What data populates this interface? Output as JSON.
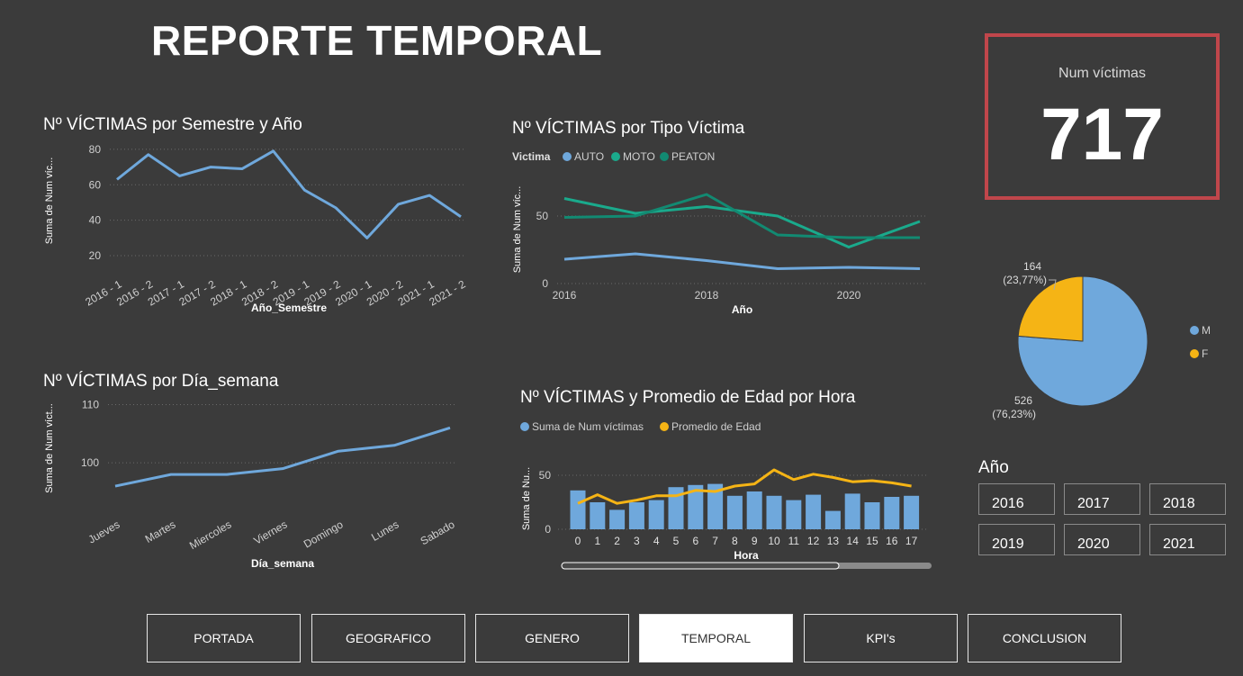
{
  "page": {
    "title": "REPORTE TEMPORAL"
  },
  "kpi": {
    "label": "Num víctimas",
    "value": "717"
  },
  "slicer": {
    "title": "Año",
    "options": [
      "2016",
      "2017",
      "2018",
      "2019",
      "2020",
      "2021"
    ]
  },
  "nav": {
    "items": [
      "PORTADA",
      "GEOGRAFICO",
      "GENERO",
      "TEMPORAL",
      "KPI's",
      "CONCLUSION"
    ],
    "active": "TEMPORAL"
  },
  "colors": {
    "blue": "#6fa8dc",
    "teal": "#1aaa8c",
    "dark_teal": "#128a72",
    "orange": "#f5b415",
    "kpi_border": "#c0464b"
  },
  "chart_data": [
    {
      "id": "semestre",
      "type": "line",
      "title": "Nº VÍCTIMAS por Semestre y Año",
      "xlabel": "Año_Semestre",
      "ylabel": "Suma de Num víc...",
      "categories": [
        "2016 - 1",
        "2016 - 2",
        "2017 - 1",
        "2017 - 2",
        "2018 - 1",
        "2018 - 2",
        "2019 - 1",
        "2019 - 2",
        "2020 - 1",
        "2020 - 2",
        "2021 - 1",
        "2021 - 2"
      ],
      "series": [
        {
          "values": [
            63,
            77,
            65,
            70,
            69,
            79,
            57,
            47,
            30,
            49,
            54,
            42
          ]
        }
      ],
      "yticks": [
        20,
        40,
        60,
        80
      ],
      "ylim": [
        18,
        84
      ]
    },
    {
      "id": "tipo",
      "type": "line",
      "title": "Nº VÍCTIMAS por Tipo Víctima",
      "xlabel": "Año",
      "ylabel": "Suma de Num víc...",
      "legend_title": "Victima",
      "x": [
        2016,
        2017,
        2018,
        2019,
        2020,
        2021
      ],
      "xticks": [
        "2016",
        "2018",
        "2020"
      ],
      "series": [
        {
          "name": "AUTO",
          "values": [
            18,
            22,
            17,
            11,
            12,
            11
          ]
        },
        {
          "name": "MOTO",
          "values": [
            63,
            52,
            57,
            50,
            27,
            46
          ]
        },
        {
          "name": "PEATON",
          "values": [
            49,
            50,
            66,
            36,
            34,
            34
          ]
        }
      ],
      "yticks": [
        0,
        50
      ],
      "ylim": [
        0,
        80
      ]
    },
    {
      "id": "dia",
      "type": "line",
      "title": "Nº VÍCTIMAS por Día_semana",
      "xlabel": "Día_semana",
      "ylabel": "Suma de Num víct...",
      "categories": [
        "Jueves",
        "Martes",
        "Miercoles",
        "Viernes",
        "Domingo",
        "Lunes",
        "Sabado"
      ],
      "series": [
        {
          "values": [
            96,
            98,
            98,
            99,
            102,
            103,
            106
          ]
        }
      ],
      "yticks": [
        100,
        110
      ],
      "ylim": [
        94,
        111
      ]
    },
    {
      "id": "hora",
      "type": "bar",
      "title": "Nº VÍCTIMAS y Promedio de Edad por Hora",
      "xlabel": "Hora",
      "ylabel": "Suma de Nu...",
      "categories": [
        "0",
        "1",
        "2",
        "3",
        "4",
        "5",
        "6",
        "7",
        "8",
        "9",
        "10",
        "11",
        "12",
        "13",
        "14",
        "15",
        "16",
        "17"
      ],
      "series": [
        {
          "name": "Suma de Num víctimas",
          "type": "bar",
          "values": [
            36,
            25,
            18,
            25,
            27,
            39,
            41,
            42,
            31,
            35,
            31,
            27,
            32,
            17,
            33,
            25,
            30,
            31
          ]
        },
        {
          "name": "Promedio de Edad",
          "type": "line",
          "values": [
            24,
            32,
            24,
            27,
            31,
            31,
            36,
            35,
            40,
            42,
            55,
            46,
            51,
            48,
            44,
            45,
            43,
            40
          ]
        }
      ],
      "yticks": [
        0,
        50
      ],
      "ylim": [
        0,
        60
      ]
    },
    {
      "id": "genero",
      "type": "pie",
      "labels": [
        "M",
        "F"
      ],
      "values": [
        526,
        164
      ],
      "percents": [
        "(76,23%)",
        "(23,77%)"
      ],
      "legend": [
        "M",
        "F"
      ]
    }
  ]
}
